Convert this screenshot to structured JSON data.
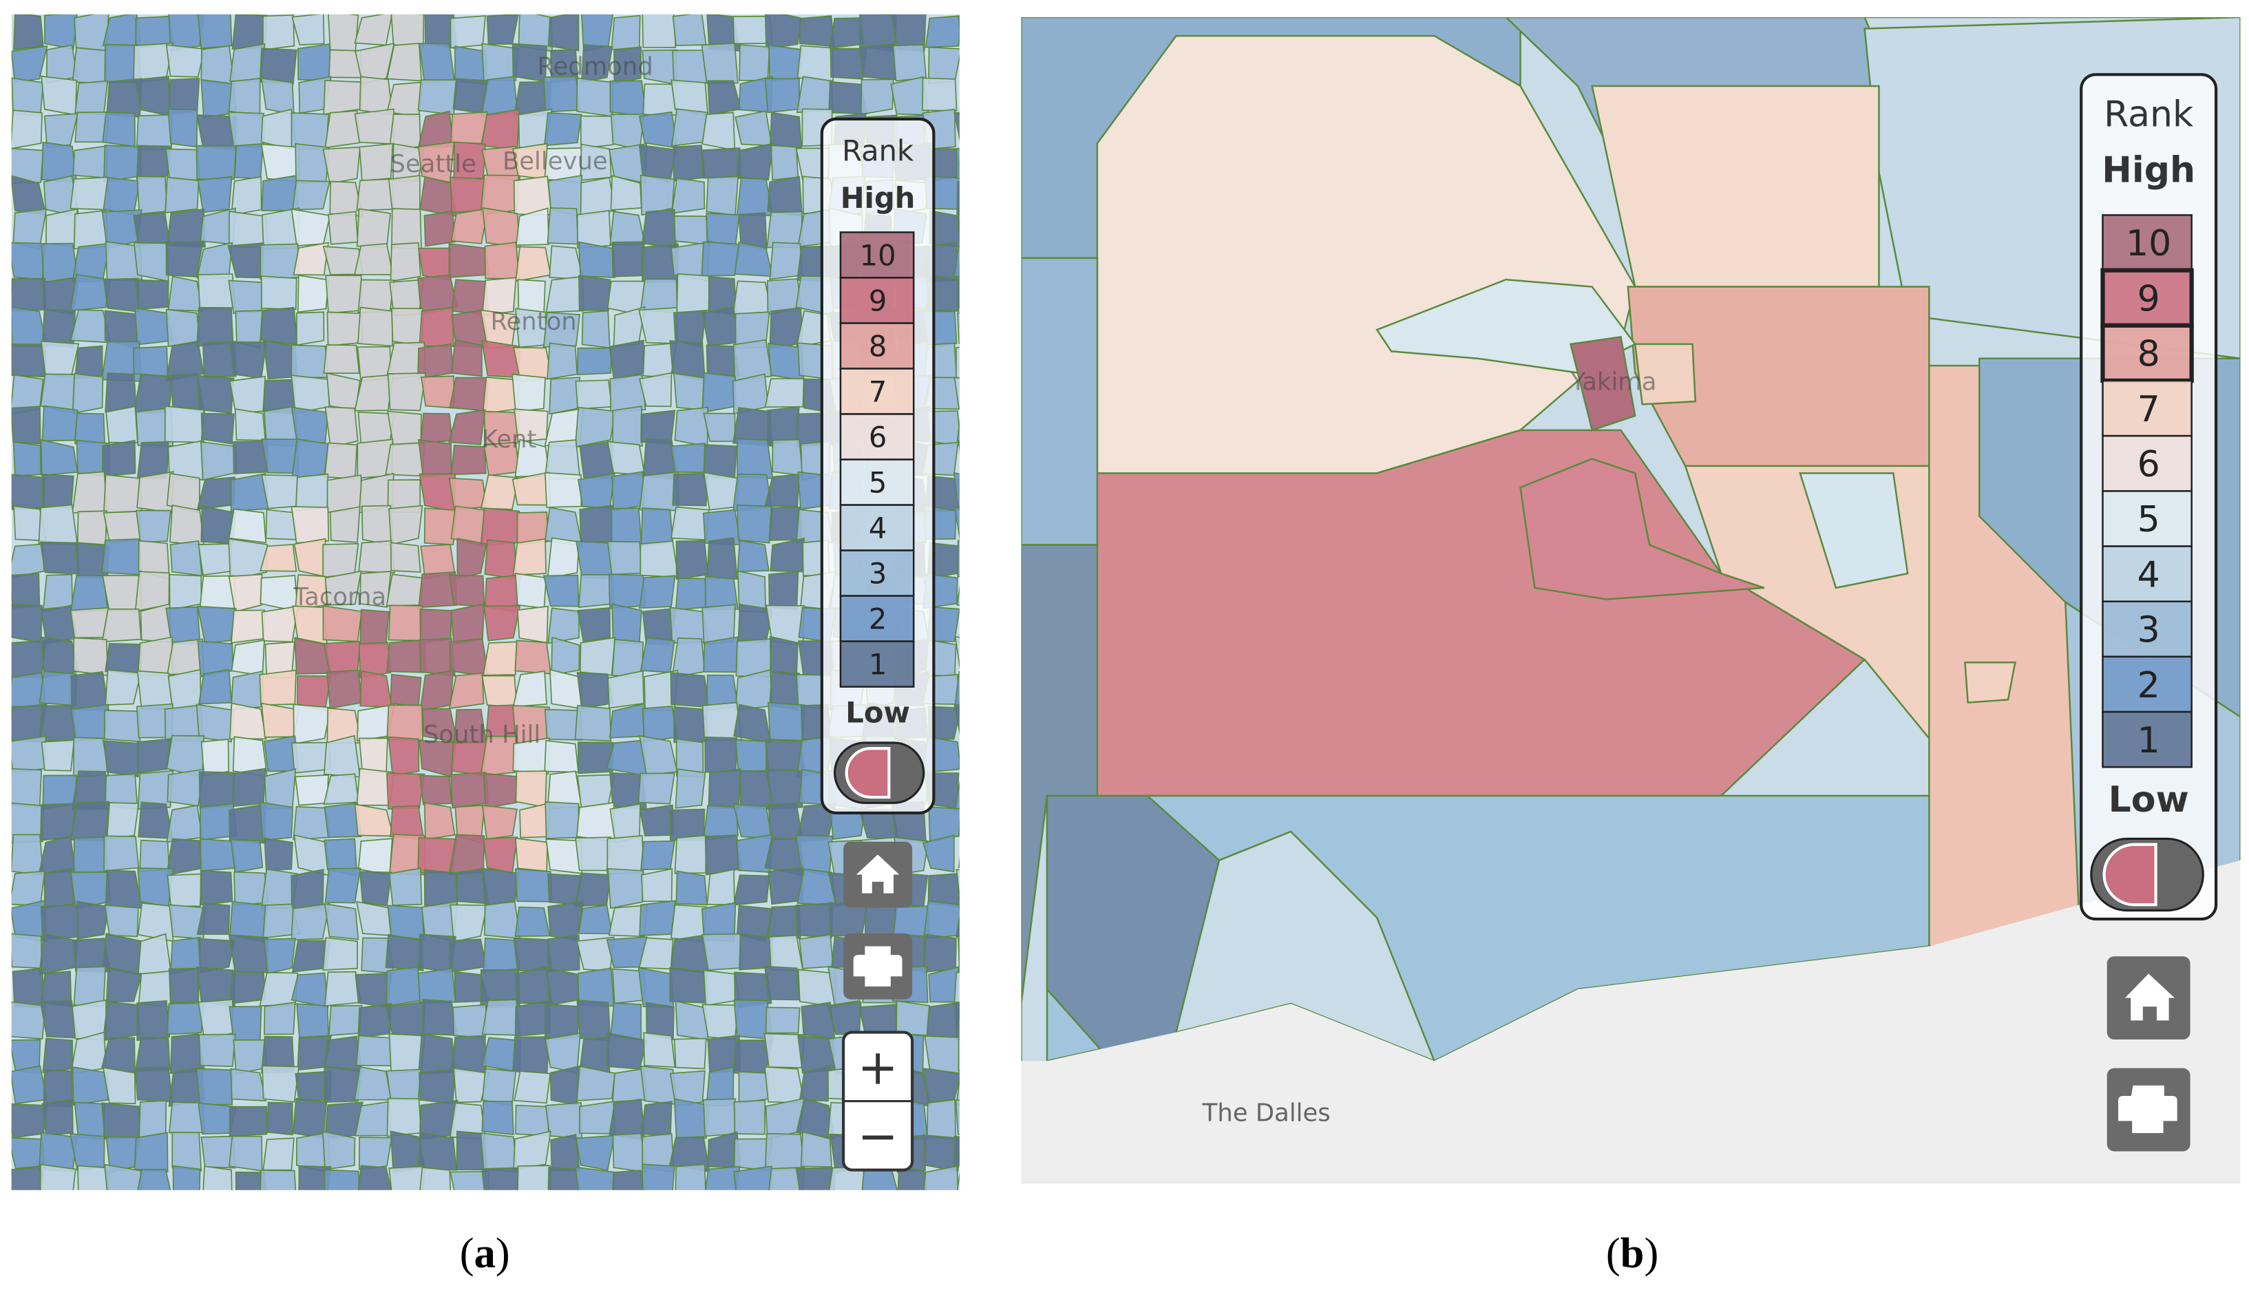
{
  "panels": [
    {
      "caption": [
        "(",
        "a",
        ")"
      ],
      "place_labels": [
        "Redmond",
        "Seattle",
        "Bellevue",
        "Renton",
        "Kent",
        "Tacoma",
        "South Hill"
      ],
      "legend": {
        "title": "Rank",
        "high": "High",
        "low": "Low",
        "ranks": [
          10,
          9,
          8,
          7,
          6,
          5,
          4,
          3,
          2,
          1
        ]
      },
      "zoom": [
        "+",
        "−"
      ]
    },
    {
      "caption": [
        "(",
        "b",
        ")"
      ],
      "place_labels": [
        "Yakima",
        "The Dalles"
      ],
      "legend": {
        "title": "Rank",
        "high": "High",
        "low": "Low",
        "ranks": [
          10,
          9,
          8,
          7,
          6,
          5,
          4,
          3,
          2,
          1
        ]
      }
    }
  ]
}
